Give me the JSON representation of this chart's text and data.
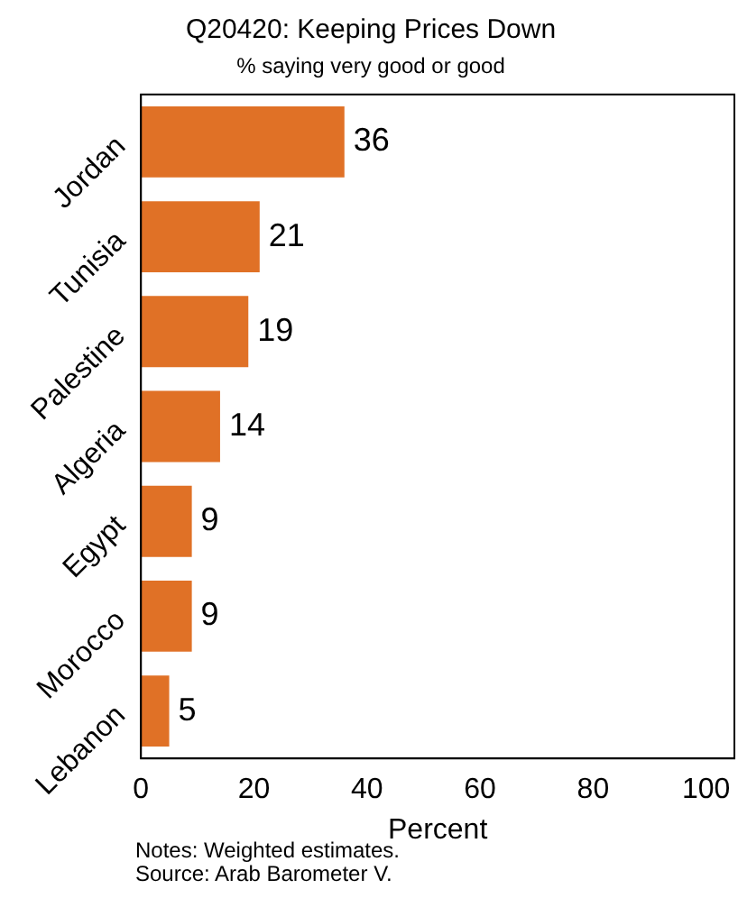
{
  "chart_data": {
    "type": "bar",
    "orientation": "horizontal",
    "title": "Q20420: Keeping Prices Down",
    "subtitle": "% saying very good or good",
    "xlabel": "Percent",
    "categories": [
      "Jordan",
      "Tunisia",
      "Palestine",
      "Algeria",
      "Egypt",
      "Morocco",
      "Lebanon"
    ],
    "values": [
      36,
      21,
      19,
      14,
      9,
      9,
      5
    ],
    "color": "#e07126",
    "xlim": [
      0,
      105
    ],
    "xticks": [
      0,
      20,
      40,
      60,
      80,
      100
    ],
    "grid": false,
    "legend": false,
    "data_labels": true,
    "annotations": [
      "Notes: Weighted estimates.",
      "Source: Arab Barometer V."
    ]
  }
}
